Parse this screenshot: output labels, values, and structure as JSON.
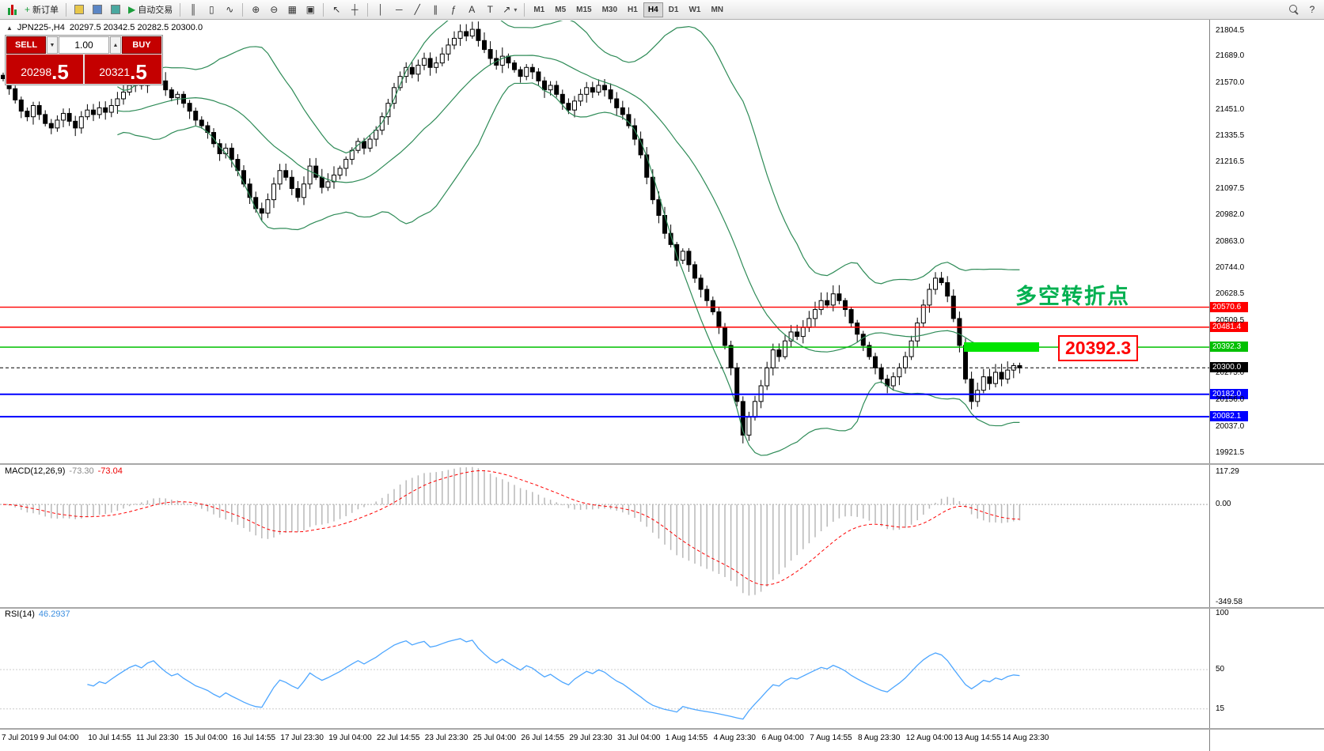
{
  "toolbar": {
    "new_order": "新订单",
    "auto_trading": "自动交易",
    "timeframes": [
      "M1",
      "M5",
      "M15",
      "M30",
      "H1",
      "H4",
      "D1",
      "W1",
      "MN"
    ],
    "active_timeframe": "H4",
    "icons": {
      "new_order_plus": "+",
      "auto_play": "▶",
      "bars": "║",
      "candles": "▯",
      "line_chart": "∿",
      "zoom_in": "⊕",
      "zoom_out": "⊖",
      "grid": "▦",
      "tile": "▣",
      "cursor": "↖",
      "crosshair": "┼",
      "vline": "│",
      "hline": "─",
      "trendline": "╱",
      "channel": "∥",
      "fibonacci": "ƒ",
      "text": "A",
      "label": "T",
      "arrows": "↗",
      "dropdown": "▾",
      "collapse": "▲",
      "help": "?"
    }
  },
  "symbol_header": {
    "symbol_period": "JPN225-,H4",
    "ohlc": "20297.5 20342.5 20282.5 20300.0"
  },
  "trade_panel": {
    "sell_label": "SELL",
    "buy_label": "BUY",
    "volume": "1.00",
    "sell_price_main": "20298",
    "sell_price_fraction": ".5",
    "buy_price_main": "20321",
    "buy_price_fraction": ".5"
  },
  "annotations": {
    "turning_point": "多空转折点",
    "price_label": "20392.3"
  },
  "chart_data": {
    "type": "candlestick",
    "title": "JPN225-,H4",
    "price_range": [
      19885,
      21835
    ],
    "closes": [
      21590,
      21545,
      21495,
      21445,
      21420,
      21470,
      21430,
      21390,
      21370,
      21405,
      21435,
      21400,
      21370,
      21420,
      21450,
      21430,
      21460,
      21440,
      21470,
      21500,
      21530,
      21560,
      21580,
      21560,
      21600,
      21620,
      21580,
      21540,
      21505,
      21520,
      21480,
      21445,
      21405,
      21380,
      21350,
      21300,
      21255,
      21280,
      21230,
      21180,
      21120,
      21060,
      21010,
      20990,
      21050,
      21120,
      21180,
      21150,
      21100,
      21060,
      21120,
      21200,
      21150,
      21105,
      21130,
      21160,
      21190,
      21230,
      21270,
      21310,
      21280,
      21320,
      21360,
      21420,
      21480,
      21550,
      21600,
      21640,
      21610,
      21650,
      21680,
      21640,
      21660,
      21700,
      21740,
      21770,
      21800,
      21780,
      21810,
      21760,
      21720,
      21680,
      21650,
      21690,
      21660,
      21630,
      21600,
      21640,
      21620,
      21580,
      21540,
      21560,
      21520,
      21480,
      21450,
      21490,
      21520,
      21550,
      21530,
      21560,
      21540,
      21500,
      21460,
      21430,
      21380,
      21320,
      21250,
      21150,
      21050,
      20980,
      20900,
      20850,
      20780,
      20820,
      20760,
      20700,
      20650,
      20600,
      20550,
      20480,
      20400,
      20300,
      20150,
      20000,
      20080,
      20150,
      20220,
      20300,
      20380,
      20350,
      20420,
      20460,
      20440,
      20480,
      20520,
      20560,
      20600,
      20580,
      20630,
      20600,
      20560,
      20500,
      20450,
      20400,
      20350,
      20300,
      20250,
      20220,
      20260,
      20300,
      20350,
      20420,
      20500,
      20580,
      20650,
      20700,
      20680,
      20620,
      20520,
      20400,
      20250,
      20150,
      20200,
      20260,
      20230,
      20280,
      20250,
      20290,
      20310,
      20300
    ],
    "price_axis_labels": [
      "21804.5",
      "21689.0",
      "21570.0",
      "21451.0",
      "21335.5",
      "21216.5",
      "21097.5",
      "20982.0",
      "20863.0",
      "20744.0",
      "20628.5",
      "20509.5",
      "20275.0",
      "20156.0",
      "20037.0",
      "19921.5"
    ],
    "levels": [
      {
        "value": 20570.6,
        "label": "20570.6",
        "color": "#ff0000",
        "width": 1.4
      },
      {
        "value": 20481.4,
        "label": "20481.4",
        "color": "#ff0000",
        "width": 1.4
      },
      {
        "value": 20392.3,
        "label": "20392.3",
        "color": "#00c000",
        "width": 1.4,
        "highlight": true
      },
      {
        "value": 20300.0,
        "label": "20300.0",
        "color": "#000000",
        "width": 1,
        "style": "dashed"
      },
      {
        "value": 20182.0,
        "label": "20182.0",
        "color": "#0000ff",
        "width": 2
      },
      {
        "value": 20082.1,
        "label": "20082.1",
        "color": "#0000ff",
        "width": 2
      }
    ],
    "bollinger": {
      "period": 20,
      "deviation": 2,
      "color": "#2e8b57"
    },
    "macd": {
      "name": "MACD(12,26,9)",
      "value": "-73.30",
      "signal_value": "-73.04",
      "fast": 12,
      "slow": 26,
      "signal": 9,
      "axis_labels": [
        "117.29",
        "0.00",
        "-349.58"
      ],
      "range": [
        130,
        -360
      ],
      "histogram_color": "#b8b8b8",
      "signal_color": "#ff0000"
    },
    "rsi": {
      "name": "RSI(14)",
      "value": "46.2937",
      "period": 14,
      "axis_labels": [
        "100",
        "50",
        "15"
      ],
      "levels": [
        50,
        15
      ],
      "range": [
        0,
        100
      ],
      "color": "#4da6ff"
    },
    "x_labels": [
      "7 Jul 2019",
      "9 Jul 04:00",
      "10 Jul 14:55",
      "11 Jul 23:30",
      "15 Jul 04:00",
      "16 Jul 14:55",
      "17 Jul 23:30",
      "19 Jul 04:00",
      "22 Jul 14:55",
      "23 Jul 23:30",
      "25 Jul 04:00",
      "26 Jul 14:55",
      "29 Jul 23:30",
      "31 Jul 04:00",
      "1 Aug 14:55",
      "4 Aug 23:30",
      "6 Aug 04:00",
      "7 Aug 14:55",
      "8 Aug 23:30",
      "12 Aug 04:00",
      "13 Aug 14:55",
      "14 Aug 23:30"
    ],
    "x_label_every": 8
  }
}
